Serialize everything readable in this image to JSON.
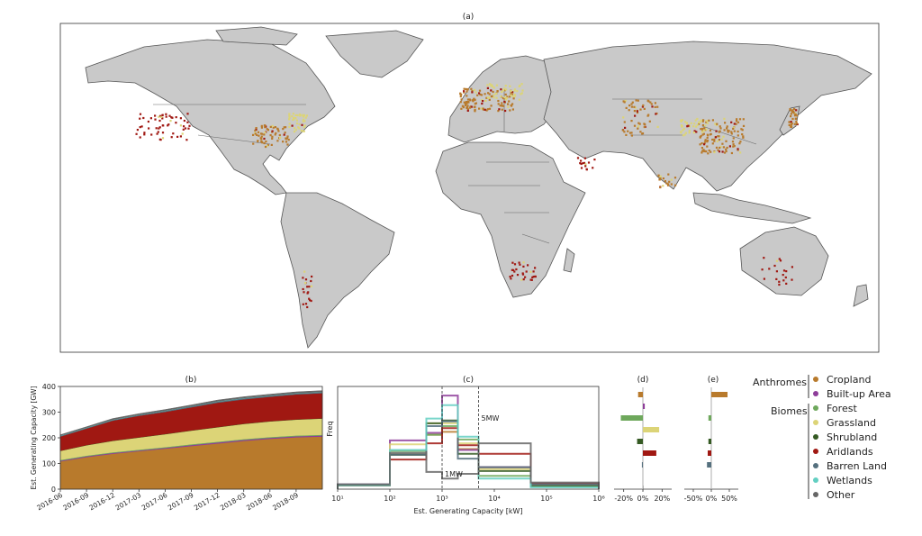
{
  "figure": {
    "panel_a_label": "(a)",
    "panel_b_label": "(b)",
    "panel_c_label": "(c)",
    "panel_d_label": "(d)",
    "panel_e_label": "(e)"
  },
  "colors": {
    "Cropland": "#b87a2c",
    "Built-up Area": "#8e3d9a",
    "Forest": "#6ea85c",
    "Grassland": "#dcd477",
    "Shrubland": "#355a23",
    "Aridlands": "#a01812",
    "Barren Land": "#55707e",
    "Wetlands": "#63cfc2",
    "Other": "#666666"
  },
  "legend": {
    "anthromes_label": "Anthromes",
    "biomes_label": "Biomes",
    "anthromes": [
      "Cropland",
      "Built-up Area"
    ],
    "biomes": [
      "Forest",
      "Grassland",
      "Shrubland",
      "Aridlands",
      "Barren Land",
      "Wetlands",
      "Other"
    ]
  },
  "chart_data": [
    {
      "id": "b",
      "type": "area",
      "ylabel": "Est. Generating Capacity [GW]",
      "ylim": [
        0,
        400
      ],
      "yticks": [
        0,
        100,
        200,
        300,
        400
      ],
      "xlim": [
        "2016-06",
        "2018-12"
      ],
      "xticks": [
        "2016-06",
        "2016-09",
        "2016-12",
        "2017-03",
        "2017-06",
        "2017-09",
        "2017-12",
        "2018-03",
        "2018-06",
        "2018-09"
      ],
      "x": [
        "2016-06",
        "2016-09",
        "2016-12",
        "2017-03",
        "2017-06",
        "2017-09",
        "2017-12",
        "2018-03",
        "2018-06",
        "2018-09",
        "2018-12"
      ],
      "series": [
        {
          "name": "Cropland",
          "values": [
            108,
            125,
            138,
            148,
            158,
            168,
            178,
            188,
            196,
            202,
            205
          ]
        },
        {
          "name": "Built-up Area",
          "values": [
            3,
            3,
            3,
            3,
            3,
            4,
            4,
            4,
            4,
            4,
            4
          ]
        },
        {
          "name": "Forest",
          "values": [
            3,
            3,
            3,
            3,
            3,
            3,
            3,
            3,
            3,
            3,
            3
          ]
        },
        {
          "name": "Grassland",
          "values": [
            35,
            40,
            44,
            47,
            50,
            53,
            56,
            59,
            61,
            62,
            63
          ]
        },
        {
          "name": "Shrubland",
          "values": [
            1,
            1,
            1,
            1,
            1,
            1,
            1,
            1,
            1,
            1,
            1
          ]
        },
        {
          "name": "Aridlands",
          "values": [
            55,
            64,
            78,
            84,
            86,
            90,
            95,
            95,
            95,
            97,
            98
          ]
        },
        {
          "name": "Barren Land",
          "values": [
            3,
            3,
            3,
            3,
            4,
            4,
            4,
            4,
            4,
            4,
            4
          ]
        },
        {
          "name": "Wetlands",
          "values": [
            1,
            1,
            1,
            1,
            1,
            1,
            1,
            1,
            1,
            1,
            1
          ]
        },
        {
          "name": "Other",
          "values": [
            3,
            3,
            4,
            4,
            4,
            4,
            5,
            5,
            5,
            5,
            5
          ]
        }
      ]
    },
    {
      "id": "c",
      "type": "line",
      "xlabel": "Est. Generating Capacity [kW]",
      "ylabel": "Freq",
      "xscale": "log",
      "xlim": [
        10,
        1000000
      ],
      "xticks": [
        10,
        100,
        1000,
        10000,
        100000,
        1000000
      ],
      "xtick_labels": [
        "10¹",
        "10²",
        "10³",
        "10⁴",
        "10⁵",
        "10⁶"
      ],
      "bin_edges": [
        10,
        100,
        500,
        1000,
        2000,
        5000,
        50000,
        1000000
      ],
      "ylim": [
        0,
        1
      ],
      "series": [
        {
          "name": "Cropland",
          "values": [
            0.04,
            0.36,
            0.57,
            0.6,
            0.42,
            0.23,
            0.04
          ]
        },
        {
          "name": "Built-up Area",
          "values": [
            0.05,
            0.51,
            0.59,
            0.98,
            0.41,
            0.23,
            0.05
          ]
        },
        {
          "name": "Forest",
          "values": [
            0.04,
            0.4,
            0.57,
            0.66,
            0.52,
            0.14,
            0.04
          ]
        },
        {
          "name": "Grassland",
          "values": [
            0.04,
            0.47,
            0.69,
            0.69,
            0.48,
            0.21,
            0.03
          ]
        },
        {
          "name": "Shrubland",
          "values": [
            0.04,
            0.36,
            0.69,
            0.72,
            0.37,
            0.19,
            0.03
          ]
        },
        {
          "name": "Aridlands",
          "values": [
            0.04,
            0.31,
            0.48,
            0.64,
            0.46,
            0.37,
            0.06
          ]
        },
        {
          "name": "Barren Land",
          "values": [
            0.05,
            0.36,
            0.66,
            0.71,
            0.32,
            0.23,
            0.05
          ]
        },
        {
          "name": "Wetlands",
          "values": [
            0.04,
            0.41,
            0.74,
            0.88,
            0.55,
            0.11,
            0.02
          ]
        },
        {
          "name": "Other",
          "values": [
            0.05,
            0.38,
            0.18,
            0.11,
            0.16,
            0.48,
            0.07
          ]
        }
      ],
      "annotations": [
        {
          "x": 1000,
          "text": "1MW"
        },
        {
          "x": 5000,
          "text": "5MW"
        }
      ]
    },
    {
      "id": "d",
      "type": "bar",
      "orientation": "horizontal",
      "xlim": [
        -30,
        30
      ],
      "xticks": [
        -20,
        0,
        20
      ],
      "xtick_labels": [
        "-20%",
        "0%",
        "20%"
      ],
      "categories": [
        "Cropland",
        "Built-up Area",
        "Forest",
        "Grassland",
        "Shrubland",
        "Aridlands",
        "Barren Land",
        "Wetlands",
        "Other"
      ],
      "values": [
        -5,
        2,
        -23,
        17,
        -6,
        14,
        -1,
        0,
        0.5
      ]
    },
    {
      "id": "e",
      "type": "bar",
      "orientation": "horizontal",
      "xlim": [
        -75,
        75
      ],
      "xticks": [
        -50,
        0,
        50
      ],
      "xtick_labels": [
        "-50%",
        "0%",
        "50%"
      ],
      "categories": [
        "Cropland",
        "Built-up Area",
        "Forest",
        "Grassland",
        "Shrubland",
        "Aridlands",
        "Barren Land",
        "Wetlands",
        "Other"
      ],
      "values": [
        45,
        0,
        -8,
        0,
        -8,
        -10,
        -12,
        0,
        0
      ]
    }
  ]
}
